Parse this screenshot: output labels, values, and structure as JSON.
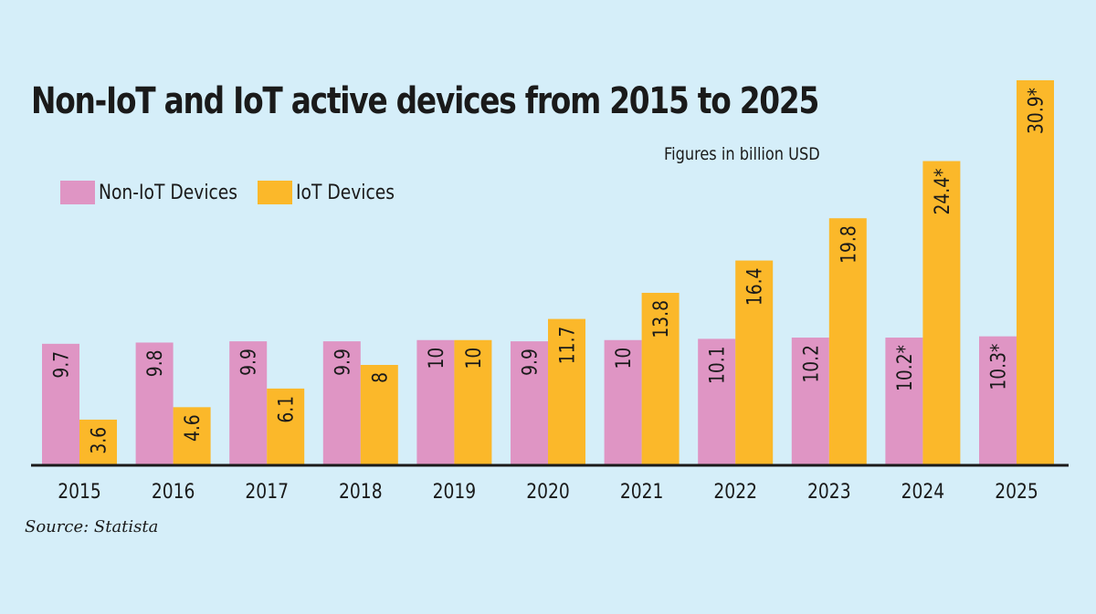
{
  "chart_data": {
    "type": "bar",
    "title": "Non-IoT and IoT active devices from 2015 to 2025",
    "subtitle": "Figures in billion USD",
    "categories": [
      "2015",
      "2016",
      "2017",
      "2018",
      "2019",
      "2020",
      "2021",
      "2022",
      "2023",
      "2024",
      "2025"
    ],
    "series": [
      {
        "name": "Non-IoT Devices",
        "color": "#df95c4",
        "values": [
          9.7,
          9.8,
          9.9,
          9.9,
          10,
          9.9,
          10,
          10.1,
          10.2,
          10.2,
          10.3
        ],
        "labels": [
          "9.7",
          "9.8",
          "9.9",
          "9.9",
          "10",
          "9.9",
          "10",
          "10.1",
          "10.2",
          "10.2*",
          "10.3*"
        ]
      },
      {
        "name": "IoT Devices",
        "color": "#fbb82a",
        "values": [
          3.6,
          4.6,
          6.1,
          8,
          10,
          11.7,
          13.8,
          16.4,
          19.8,
          24.4,
          30.9
        ],
        "labels": [
          "3.6",
          "4.6",
          "6.1",
          "8",
          "10",
          "11.7",
          "13.8",
          "16.4",
          "19.8",
          "24.4*",
          "30.9*"
        ]
      }
    ],
    "ylim": [
      0,
      31
    ],
    "grid": false,
    "legend": "top-left",
    "source": "Source: Statista"
  }
}
